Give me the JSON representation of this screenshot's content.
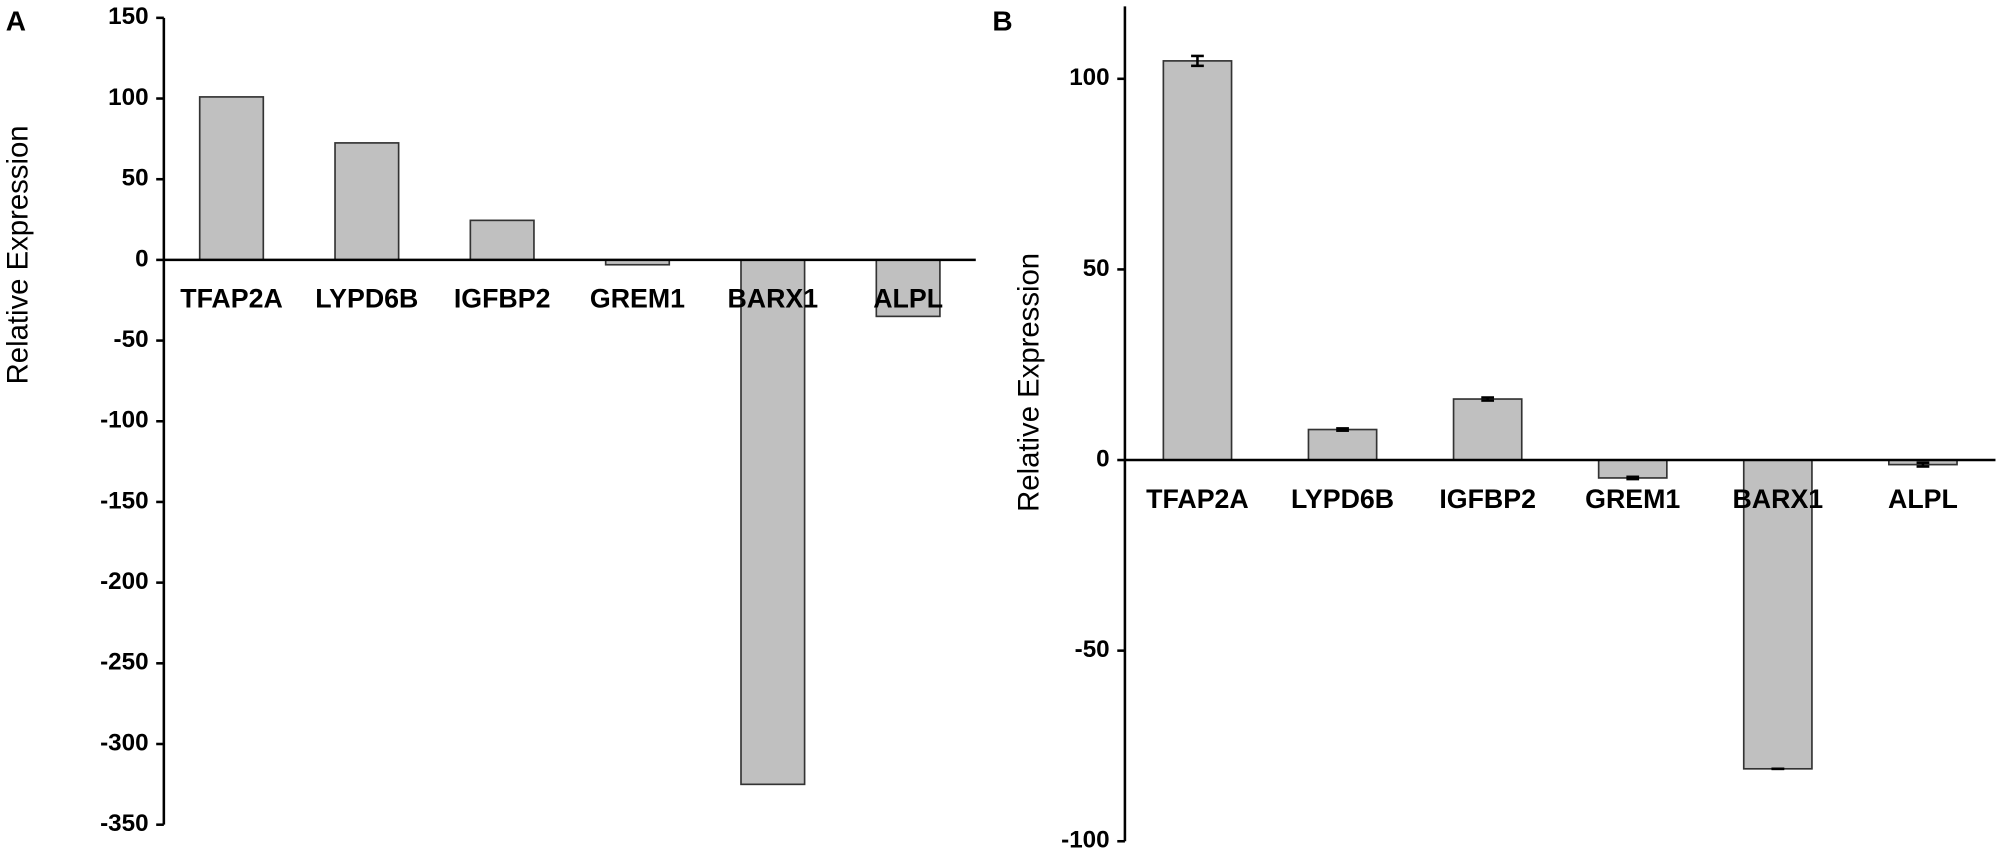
{
  "chart_data": [
    {
      "type": "bar",
      "panel_label": "A",
      "y_label": "Relative Expression",
      "categories": [
        "TFAP2A",
        "LYPD6B",
        "IGFBP2",
        "GREM1",
        "BARX1",
        "ALPL"
      ],
      "values": [
        101,
        72.5,
        24.5,
        -3,
        -325,
        -35
      ],
      "color": "#c0c0c0",
      "ylim": [
        -350,
        150
      ],
      "yticks": [
        -350,
        -300,
        -250,
        -200,
        -150,
        -100,
        -50,
        0,
        50,
        100,
        150
      ]
    },
    {
      "type": "bar",
      "panel_label": "B",
      "y_label": "Relative Expression",
      "categories": [
        "TFAP2A",
        "LYPD6B",
        "IGFBP2",
        "GREM1",
        "BARX1",
        "ALPL"
      ],
      "values": [
        104.7,
        8,
        16,
        -4.7,
        -81,
        -1.2
      ],
      "errors": [
        1.3,
        0.3,
        0.4,
        0.3,
        0,
        0.5
      ],
      "color": "#c0c0c0",
      "ylim": [
        -100,
        119
      ],
      "yticks": [
        -100,
        -50,
        0,
        50,
        100
      ]
    }
  ]
}
